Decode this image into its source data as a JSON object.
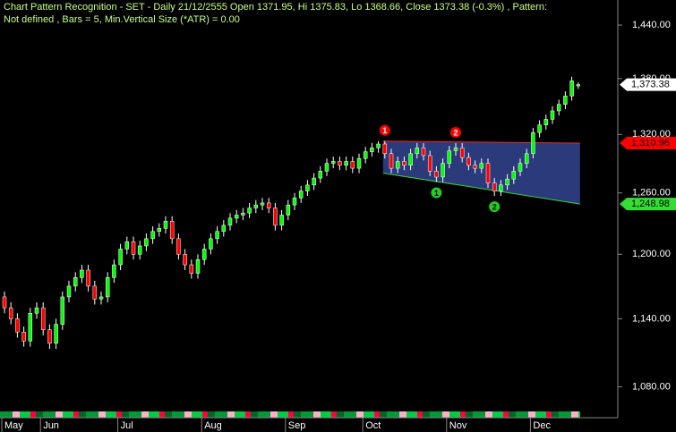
{
  "chart_data": {
    "type": "candlestick",
    "title_lines": [
      "Chart Pattern Recognition  - SET - Daily 21/12/2555 Open 1371.95, Hi 1375.83, Lo 1368.66, Close 1373.38 (-0.3%) , Pattern:",
      "Not defined , Bars = 5, Min.Vertical Size (*ATR) = 0.00"
    ],
    "log_scale": true,
    "up_color": "#00ff00",
    "down_color": "#ff0000",
    "ylim": [
      1059,
      1469
    ],
    "yticks": [
      {
        "value": 1080,
        "label": "1,080.00"
      },
      {
        "value": 1140,
        "label": "1,140.00"
      },
      {
        "value": 1200,
        "label": "1,200.00"
      },
      {
        "value": 1260,
        "label": "1,260.00"
      },
      {
        "value": 1320,
        "label": "1,320.00"
      },
      {
        "value": 1380,
        "label": "1,380.00"
      },
      {
        "value": 1440,
        "label": "1,440.00"
      }
    ],
    "categories": [
      "May",
      null,
      null,
      null,
      null,
      null,
      "Jun",
      null,
      null,
      null,
      null,
      null,
      null,
      null,
      null,
      null,
      null,
      null,
      "Jul",
      null,
      null,
      null,
      null,
      null,
      null,
      null,
      null,
      null,
      null,
      null,
      null,
      "Aug",
      null,
      null,
      null,
      null,
      null,
      null,
      null,
      null,
      null,
      null,
      null,
      null,
      "Sep",
      null,
      null,
      null,
      null,
      null,
      null,
      null,
      null,
      null,
      null,
      null,
      "Oct",
      null,
      null,
      null,
      null,
      null,
      null,
      null,
      null,
      null,
      null,
      null,
      null,
      "Nov",
      null,
      null,
      null,
      null,
      null,
      null,
      null,
      null,
      null,
      null,
      null,
      null,
      "Dec",
      null,
      null,
      null,
      null,
      null,
      null,
      null
    ],
    "open": [
      1160,
      1150,
      1140,
      1128,
      1120,
      1145,
      1150,
      1130,
      1118,
      1135,
      1160,
      1170,
      1178,
      1185,
      1170,
      1158,
      1160,
      1178,
      1190,
      1205,
      1212,
      1200,
      1208,
      1215,
      1222,
      1225,
      1232,
      1215,
      1200,
      1190,
      1182,
      1195,
      1205,
      1215,
      1222,
      1228,
      1235,
      1238,
      1240,
      1245,
      1248,
      1250,
      1245,
      1228,
      1238,
      1248,
      1255,
      1262,
      1268,
      1275,
      1282,
      1290,
      1292,
      1288,
      1292,
      1285,
      1295,
      1302,
      1306,
      1310,
      1300,
      1285,
      1292,
      1288,
      1300,
      1306,
      1298,
      1282,
      1276,
      1290,
      1303,
      1306,
      1296,
      1288,
      1285,
      1290,
      1270,
      1262,
      1268,
      1274,
      1282,
      1290,
      1300,
      1322,
      1330,
      1336,
      1345,
      1352,
      1361,
      1371.95
    ],
    "high": [
      1165,
      1155,
      1145,
      1133,
      1150,
      1155,
      1155,
      1135,
      1140,
      1165,
      1175,
      1183,
      1190,
      1190,
      1175,
      1165,
      1183,
      1195,
      1210,
      1217,
      1217,
      1213,
      1220,
      1227,
      1230,
      1237,
      1237,
      1220,
      1205,
      1195,
      1200,
      1210,
      1220,
      1227,
      1233,
      1240,
      1243,
      1245,
      1250,
      1253,
      1255,
      1255,
      1250,
      1243,
      1253,
      1260,
      1267,
      1273,
      1280,
      1287,
      1295,
      1297,
      1297,
      1297,
      1297,
      1300,
      1307,
      1311,
      1313,
      1313,
      1305,
      1297,
      1297,
      1305,
      1311,
      1311,
      1303,
      1287,
      1295,
      1308,
      1311,
      1311,
      1301,
      1293,
      1295,
      1295,
      1275,
      1273,
      1279,
      1287,
      1295,
      1305,
      1327,
      1335,
      1341,
      1350,
      1357,
      1366,
      1382,
      1375.83
    ],
    "low": [
      1145,
      1135,
      1123,
      1115,
      1115,
      1140,
      1125,
      1113,
      1113,
      1130,
      1155,
      1165,
      1173,
      1165,
      1153,
      1153,
      1155,
      1173,
      1185,
      1200,
      1195,
      1195,
      1203,
      1210,
      1217,
      1220,
      1210,
      1195,
      1185,
      1177,
      1177,
      1190,
      1200,
      1210,
      1217,
      1223,
      1230,
      1233,
      1235,
      1240,
      1243,
      1240,
      1223,
      1223,
      1233,
      1243,
      1250,
      1257,
      1263,
      1270,
      1277,
      1285,
      1283,
      1283,
      1280,
      1280,
      1290,
      1297,
      1301,
      1295,
      1280,
      1280,
      1283,
      1283,
      1295,
      1293,
      1277,
      1271,
      1271,
      1285,
      1298,
      1291,
      1283,
      1280,
      1280,
      1265,
      1257,
      1257,
      1263,
      1269,
      1277,
      1285,
      1295,
      1317,
      1325,
      1331,
      1340,
      1347,
      1356,
      1368.66
    ],
    "close": [
      1150,
      1140,
      1128,
      1120,
      1145,
      1150,
      1130,
      1118,
      1135,
      1160,
      1170,
      1178,
      1185,
      1170,
      1158,
      1160,
      1178,
      1190,
      1205,
      1212,
      1200,
      1208,
      1215,
      1222,
      1225,
      1232,
      1215,
      1200,
      1190,
      1182,
      1195,
      1205,
      1215,
      1222,
      1228,
      1235,
      1238,
      1240,
      1245,
      1248,
      1250,
      1245,
      1228,
      1238,
      1248,
      1255,
      1262,
      1268,
      1275,
      1282,
      1290,
      1292,
      1288,
      1292,
      1285,
      1295,
      1302,
      1306,
      1310,
      1300,
      1285,
      1292,
      1288,
      1300,
      1306,
      1298,
      1282,
      1276,
      1290,
      1303,
      1306,
      1296,
      1288,
      1285,
      1290,
      1270,
      1262,
      1268,
      1274,
      1282,
      1290,
      1300,
      1322,
      1330,
      1336,
      1345,
      1352,
      1361,
      1377.5,
      1373.38
    ],
    "pattern": {
      "fill": "#2a3a7a",
      "index_range": [
        59,
        89
      ],
      "resistance": [
        1313,
        1310.96
      ],
      "support": [
        1280,
        1248.98
      ],
      "resistance_color": "#ff2020",
      "support_color": "#40d040"
    },
    "pivots": [
      {
        "label": "1",
        "color": "#ff0000",
        "index": 59,
        "value": 1313,
        "side": "above"
      },
      {
        "label": "2",
        "color": "#ff0000",
        "index": 70,
        "value": 1311,
        "side": "above"
      },
      {
        "label": "1",
        "color": "#22cc22",
        "index": 67,
        "value": 1271,
        "side": "below"
      },
      {
        "label": "2",
        "color": "#22cc22",
        "index": 76,
        "value": 1257,
        "side": "below"
      }
    ],
    "price_tags": [
      {
        "value": 1373.38,
        "label": "1,373.38",
        "color": "#ffffff"
      },
      {
        "value": 1310.96,
        "label": "1,310.96",
        "color": "#ff0000"
      },
      {
        "value": 1248.98,
        "label": "1,248.98",
        "color": "#33dd33"
      }
    ]
  }
}
